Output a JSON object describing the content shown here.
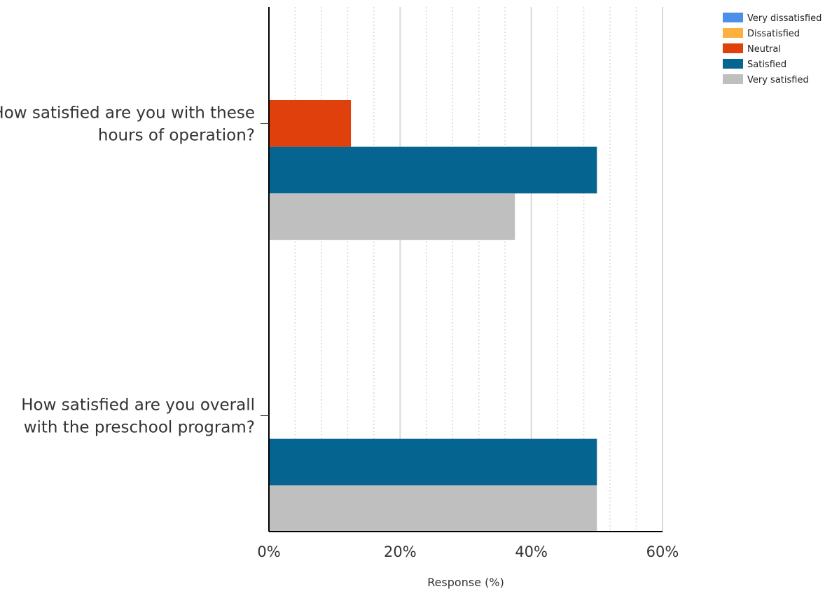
{
  "chart_data": {
    "type": "bar",
    "orientation": "horizontal",
    "categories": [
      [
        "How satisfied are you with these",
        "hours of operation?"
      ],
      [
        "How satisfied are you overall",
        "with the preschool program?"
      ]
    ],
    "series": [
      {
        "name": "Very dissatisfied",
        "color": "#4a90e8",
        "values": [
          0,
          0
        ]
      },
      {
        "name": "Dissatisfied",
        "color": "#fbb040",
        "values": [
          0,
          0
        ]
      },
      {
        "name": "Neutral",
        "color": "#e0400c",
        "values": [
          12.5,
          0
        ]
      },
      {
        "name": "Satisfied",
        "color": "#066491",
        "values": [
          50,
          50
        ]
      },
      {
        "name": "Very satisfied",
        "color": "#bfbfbf",
        "values": [
          37.5,
          50
        ]
      }
    ],
    "xlim": [
      0,
      60
    ],
    "x_ticks": [
      0,
      20,
      40,
      60
    ],
    "x_tick_labels": [
      "0%",
      "20%",
      "40%",
      "60%"
    ],
    "xlabel": "Response (%)",
    "grid": true,
    "legend_position": "top-right"
  }
}
